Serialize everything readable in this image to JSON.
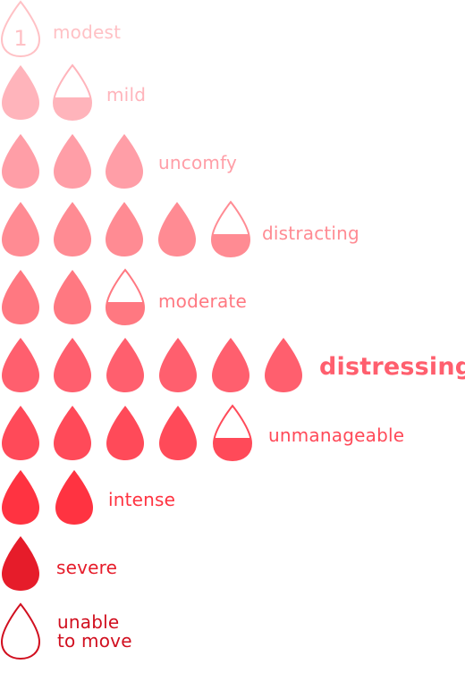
{
  "levels": [
    {
      "label": "modest",
      "color": "#ffc1c5",
      "drops": [
        "numbered"
      ],
      "number": "1"
    },
    {
      "label": "mild",
      "color": "#ffb4bb",
      "drops": [
        "full",
        "half"
      ]
    },
    {
      "label": "uncomfy",
      "color": "#ff9ea7",
      "drops": [
        "full",
        "full",
        "full"
      ]
    },
    {
      "label": "distracting",
      "color": "#ff8b93",
      "drops": [
        "full",
        "full",
        "full",
        "full",
        "half"
      ]
    },
    {
      "label": "moderate",
      "color": "#ff7881",
      "drops": [
        "full",
        "full",
        "half"
      ]
    },
    {
      "label": "distressing",
      "color": "#ff5f6e",
      "drops": [
        "full",
        "full",
        "full",
        "full",
        "full",
        "full"
      ]
    },
    {
      "label": "unmanageable",
      "color": "#ff4a59",
      "drops": [
        "full",
        "full",
        "full",
        "full",
        "half"
      ]
    },
    {
      "label": "intense",
      "color": "#ff3341",
      "drops": [
        "full",
        "full"
      ]
    },
    {
      "label": "severe",
      "color": "#e61c2a",
      "drops": [
        "full"
      ]
    },
    {
      "label": "unable\nto move",
      "color": "#d10f1f",
      "drops": [
        "outline"
      ]
    }
  ]
}
